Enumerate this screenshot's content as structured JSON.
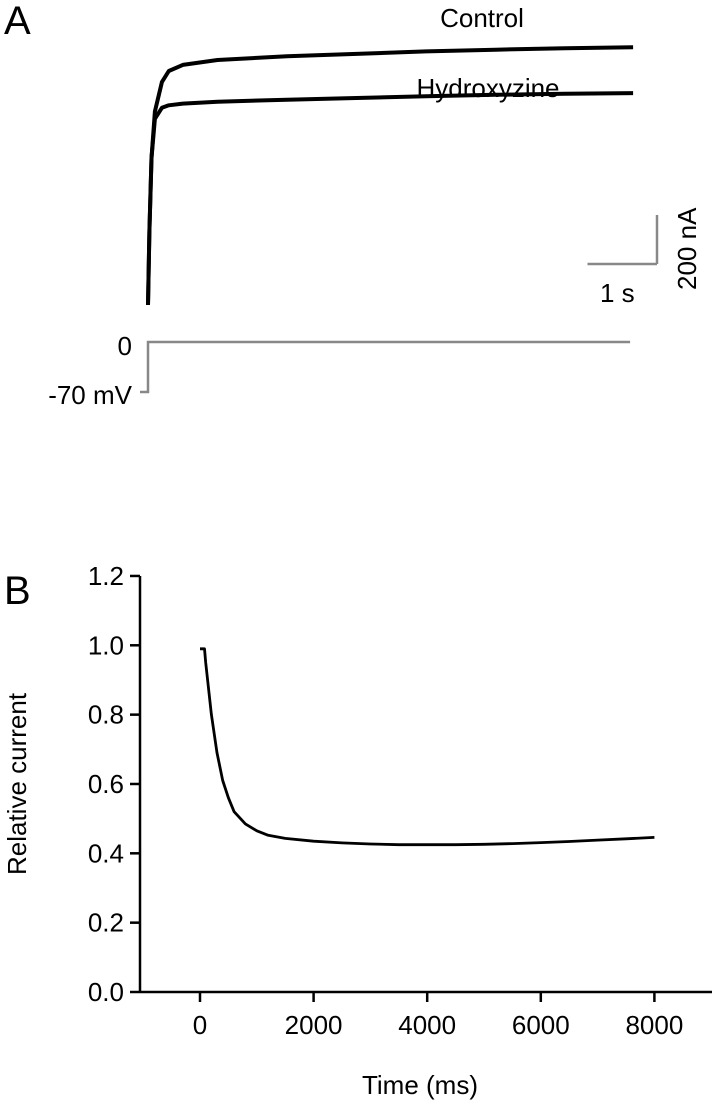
{
  "chart_data": [
    {
      "panel": "A",
      "type": "line",
      "series": [
        {
          "name": "Control",
          "x": [
            0,
            0.02,
            0.05,
            0.1,
            0.2,
            0.3,
            0.5,
            1.0,
            2.0,
            3.0,
            4.0,
            5.0,
            6.0,
            6.98
          ],
          "y": [
            0,
            300,
            600,
            790,
            910,
            955,
            980,
            1000,
            1015,
            1025,
            1035,
            1042,
            1048,
            1052
          ]
        },
        {
          "name": "Hydroxyzine",
          "x": [
            0,
            0.02,
            0.05,
            0.1,
            0.2,
            0.3,
            0.5,
            1.0,
            2.0,
            3.0,
            4.0,
            5.0,
            6.0,
            6.98
          ],
          "y": [
            0,
            300,
            600,
            760,
            805,
            815,
            822,
            830,
            838,
            845,
            852,
            858,
            862,
            865
          ]
        }
      ],
      "scale_bar": {
        "x_label": "1 s",
        "x_value": 1,
        "y_label": "200 nA",
        "y_value": 200
      },
      "voltage_protocol": {
        "labels": [
          "0",
          "-70 mV"
        ],
        "levels_mV": [
          -70,
          0
        ]
      }
    },
    {
      "panel": "B",
      "type": "line",
      "xlabel": "Time (ms)",
      "ylabel": "Relative current",
      "xlim": [
        -1000,
        9000
      ],
      "ylim": [
        0,
        1.2
      ],
      "xticks": [
        0,
        2000,
        4000,
        6000,
        8000
      ],
      "xtick_labels": [
        "0",
        "2000",
        "4000",
        "6000",
        "8000"
      ],
      "yticks": [
        0,
        0.2,
        0.4,
        0.6,
        0.8,
        1.0,
        1.2
      ],
      "ytick_labels": [
        "0.0",
        "0.2",
        "0.4",
        "0.6",
        "0.8",
        "1.0",
        "1.2"
      ],
      "series": [
        {
          "x": [
            0,
            80,
            100,
            200,
            300,
            400,
            500,
            600,
            800,
            1000,
            1200,
            1500,
            2000,
            2500,
            3000,
            3500,
            4000,
            4500,
            5000,
            5500,
            6000,
            6500,
            7000,
            7500,
            8000
          ],
          "y": [
            0.99,
            0.99,
            0.95,
            0.8,
            0.69,
            0.61,
            0.56,
            0.52,
            0.485,
            0.465,
            0.452,
            0.443,
            0.435,
            0.43,
            0.427,
            0.425,
            0.425,
            0.425,
            0.426,
            0.428,
            0.431,
            0.434,
            0.438,
            0.442,
            0.446
          ]
        }
      ]
    }
  ]
}
